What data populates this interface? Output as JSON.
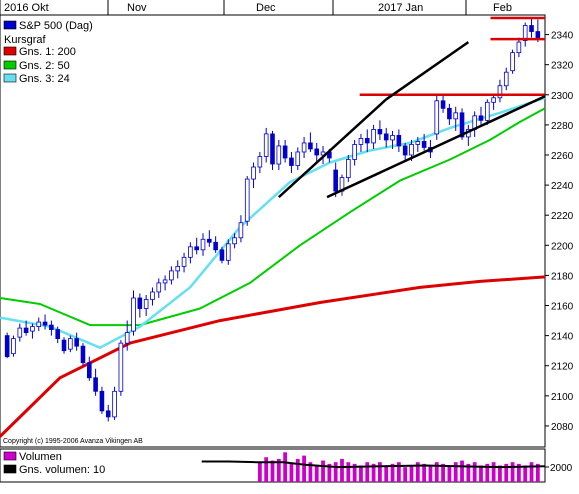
{
  "header": {
    "months": [
      "2016 Okt",
      "Nov",
      "Dec",
      "2017 Jan",
      "Feb"
    ]
  },
  "legend": {
    "items": [
      {
        "label": "S&P 500 (Dag)",
        "color": "#0000cc"
      },
      {
        "label": "Kursgraf",
        "color": ""
      },
      {
        "label": "Gns. 1: 200",
        "color": "#dd0000"
      },
      {
        "label": "Gns. 2: 50",
        "color": "#00cc00"
      },
      {
        "label": "Gns. 3: 24",
        "color": "#66e0f0"
      }
    ]
  },
  "copyright": "Copyright (c) 1995-2006 Avanza Vikingen AB",
  "volume_legend": {
    "items": [
      {
        "label": "Volumen",
        "color": "#cc00cc"
      },
      {
        "label": "Gns. volumen: 10",
        "color": "#000000"
      }
    ],
    "axis_label": "2000"
  },
  "chart_data": {
    "type": "candlestick",
    "y_ticks": [
      2080,
      2100,
      2120,
      2140,
      2160,
      2180,
      2200,
      2220,
      2240,
      2260,
      2280,
      2300,
      2320,
      2340
    ],
    "ylim": [
      2066,
      2353
    ],
    "colors": {
      "up": "#ffffff",
      "down": "#0000cc",
      "outline": "#0000cc",
      "ma200": "#dd0000",
      "ma50": "#00cc00",
      "ma24": "#66e0f0",
      "volume": "#cc00cc",
      "volume_avg": "#000000",
      "trend": "#000000",
      "resistance": "#dd0000"
    },
    "candles": [
      [
        2140,
        2142,
        2125,
        2126
      ],
      [
        2128,
        2140,
        2126,
        2138
      ],
      [
        2139,
        2148,
        2136,
        2145
      ],
      [
        2145,
        2150,
        2140,
        2142
      ],
      [
        2143,
        2148,
        2138,
        2146
      ],
      [
        2146,
        2152,
        2143,
        2149
      ],
      [
        2149,
        2154,
        2144,
        2147
      ],
      [
        2147,
        2150,
        2140,
        2144
      ],
      [
        2144,
        2146,
        2135,
        2138
      ],
      [
        2137,
        2139,
        2128,
        2130
      ],
      [
        2131,
        2140,
        2129,
        2138
      ],
      [
        2138,
        2142,
        2130,
        2133
      ],
      [
        2133,
        2135,
        2120,
        2122
      ],
      [
        2122,
        2126,
        2110,
        2112
      ],
      [
        2112,
        2118,
        2100,
        2103
      ],
      [
        2103,
        2106,
        2088,
        2090
      ],
      [
        2090,
        2094,
        2083,
        2086
      ],
      [
        2086,
        2106,
        2084,
        2103
      ],
      [
        2103,
        2137,
        2100,
        2135
      ],
      [
        2135,
        2150,
        2130,
        2142
      ],
      [
        2143,
        2170,
        2140,
        2165
      ],
      [
        2165,
        2168,
        2152,
        2158
      ],
      [
        2158,
        2167,
        2153,
        2164
      ],
      [
        2164,
        2172,
        2160,
        2169
      ],
      [
        2169,
        2178,
        2165,
        2175
      ],
      [
        2175,
        2180,
        2170,
        2177
      ],
      [
        2177,
        2186,
        2174,
        2183
      ],
      [
        2183,
        2190,
        2178,
        2186
      ],
      [
        2186,
        2195,
        2182,
        2192
      ],
      [
        2192,
        2202,
        2188,
        2199
      ],
      [
        2199,
        2205,
        2194,
        2197
      ],
      [
        2197,
        2208,
        2193,
        2204
      ],
      [
        2204,
        2210,
        2199,
        2202
      ],
      [
        2202,
        2206,
        2195,
        2197
      ],
      [
        2197,
        2199,
        2188,
        2190
      ],
      [
        2190,
        2204,
        2187,
        2201
      ],
      [
        2201,
        2208,
        2198,
        2205
      ],
      [
        2205,
        2220,
        2202,
        2215
      ],
      [
        2216,
        2246,
        2213,
        2244
      ],
      [
        2244,
        2255,
        2238,
        2252
      ],
      [
        2252,
        2262,
        2248,
        2259
      ],
      [
        2259,
        2278,
        2255,
        2274
      ],
      [
        2274,
        2276,
        2250,
        2254
      ],
      [
        2254,
        2270,
        2250,
        2266
      ],
      [
        2266,
        2270,
        2255,
        2258
      ],
      [
        2258,
        2262,
        2248,
        2253
      ],
      [
        2253,
        2265,
        2250,
        2262
      ],
      [
        2262,
        2272,
        2258,
        2268
      ],
      [
        2268,
        2275,
        2262,
        2264
      ],
      [
        2264,
        2268,
        2255,
        2260
      ],
      [
        2260,
        2266,
        2254,
        2262
      ],
      [
        2262,
        2264,
        2255,
        2258
      ],
      [
        2250,
        2255,
        2232,
        2236
      ],
      [
        2236,
        2247,
        2233,
        2245
      ],
      [
        2245,
        2260,
        2242,
        2257
      ],
      [
        2257,
        2270,
        2253,
        2267
      ],
      [
        2267,
        2274,
        2262,
        2271
      ],
      [
        2271,
        2277,
        2262,
        2268
      ],
      [
        2268,
        2280,
        2264,
        2277
      ],
      [
        2277,
        2283,
        2270,
        2274
      ],
      [
        2274,
        2278,
        2265,
        2270
      ],
      [
        2270,
        2276,
        2264,
        2273
      ],
      [
        2273,
        2277,
        2262,
        2266
      ],
      [
        2266,
        2268,
        2256,
        2260
      ],
      [
        2260,
        2270,
        2256,
        2267
      ],
      [
        2267,
        2272,
        2262,
        2269
      ],
      [
        2269,
        2274,
        2263,
        2265
      ],
      [
        2265,
        2270,
        2258,
        2262
      ],
      [
        2274,
        2300,
        2270,
        2296
      ],
      [
        2296,
        2300,
        2288,
        2291
      ],
      [
        2291,
        2294,
        2280,
        2284
      ],
      [
        2284,
        2292,
        2276,
        2288
      ],
      [
        2288,
        2291,
        2270,
        2272
      ],
      [
        2272,
        2280,
        2266,
        2277
      ],
      [
        2277,
        2289,
        2272,
        2286
      ],
      [
        2286,
        2292,
        2280,
        2283
      ],
      [
        2283,
        2297,
        2280,
        2295
      ],
      [
        2295,
        2300,
        2290,
        2298
      ],
      [
        2298,
        2310,
        2295,
        2306
      ],
      [
        2306,
        2318,
        2303,
        2315
      ],
      [
        2316,
        2330,
        2314,
        2328
      ],
      [
        2328,
        2338,
        2325,
        2335
      ],
      [
        2336,
        2348,
        2332,
        2346
      ],
      [
        2346,
        2351,
        2338,
        2342
      ],
      [
        2342,
        2350,
        2335,
        2338
      ]
    ],
    "ma200": [
      [
        0,
        2073
      ],
      [
        60,
        2112
      ],
      [
        130,
        2135
      ],
      [
        220,
        2150
      ],
      [
        320,
        2162
      ],
      [
        420,
        2172
      ],
      [
        480,
        2176
      ],
      [
        545,
        2179
      ]
    ],
    "ma50": [
      [
        0,
        2165
      ],
      [
        40,
        2161
      ],
      [
        90,
        2147
      ],
      [
        140,
        2147
      ],
      [
        200,
        2158
      ],
      [
        250,
        2175
      ],
      [
        300,
        2200
      ],
      [
        350,
        2222
      ],
      [
        400,
        2243
      ],
      [
        450,
        2257
      ],
      [
        490,
        2270
      ],
      [
        520,
        2282
      ],
      [
        545,
        2291
      ]
    ],
    "ma24": [
      [
        0,
        2152
      ],
      [
        50,
        2146
      ],
      [
        100,
        2132
      ],
      [
        140,
        2146
      ],
      [
        190,
        2172
      ],
      [
        240,
        2212
      ],
      [
        290,
        2242
      ],
      [
        330,
        2255
      ],
      [
        370,
        2263
      ],
      [
        410,
        2268
      ],
      [
        450,
        2278
      ],
      [
        500,
        2288
      ],
      [
        545,
        2298
      ]
    ],
    "trend_lines": [
      {
        "from": [
          2013,
          2232
        ],
        "to": [
          2030,
          2297
        ]
      },
      {
        "from": [
          2030,
          2297
        ],
        "to": [
          2043,
          2335
        ]
      }
    ],
    "resistance_lines": [
      {
        "level": 2300,
        "x_start": 0.66
      },
      {
        "level": 2337,
        "x_start": 0.9
      },
      {
        "level": 2351,
        "x_start": 0.9
      }
    ],
    "volume": [
      0.15,
      0.15,
      0.15,
      0.15,
      0.15,
      0.15,
      0.15,
      0.15,
      0.15,
      0.15,
      0.15,
      0.15,
      0.15,
      0.15,
      0.15,
      0.15,
      0.15,
      0.15,
      0.15,
      0.15,
      0.15,
      0.15,
      0.15,
      0.15,
      0.15,
      0.15,
      0.15,
      0.15,
      0.15,
      0.15,
      0.15,
      0.15,
      0.15,
      0.15,
      0.15,
      0.15,
      0.15,
      0.15,
      0.15,
      0.15,
      0.6,
      0.75,
      0.65,
      0.7,
      0.9,
      0.55,
      0.7,
      0.8,
      0.6,
      0.5,
      0.65,
      0.55,
      0.6,
      0.7,
      0.6,
      0.55,
      0.5,
      0.6,
      0.55,
      0.6,
      0.5,
      0.55,
      0.6,
      0.45,
      0.5,
      0.6,
      0.55,
      0.5,
      0.6,
      0.55,
      0.5,
      0.6,
      0.65,
      0.55,
      0.6,
      0.5,
      0.55,
      0.6,
      0.5,
      0.55,
      0.6,
      0.55,
      0.5,
      0.6,
      0.55
    ],
    "volume_avg": [
      [
        0.37,
        0.62
      ],
      [
        0.42,
        0.62
      ],
      [
        0.47,
        0.6
      ],
      [
        0.52,
        0.6
      ],
      [
        0.56,
        0.52
      ],
      [
        0.62,
        0.45
      ],
      [
        0.7,
        0.48
      ],
      [
        0.78,
        0.5
      ],
      [
        0.86,
        0.47
      ],
      [
        0.92,
        0.45
      ],
      [
        1.0,
        0.48
      ]
    ]
  }
}
